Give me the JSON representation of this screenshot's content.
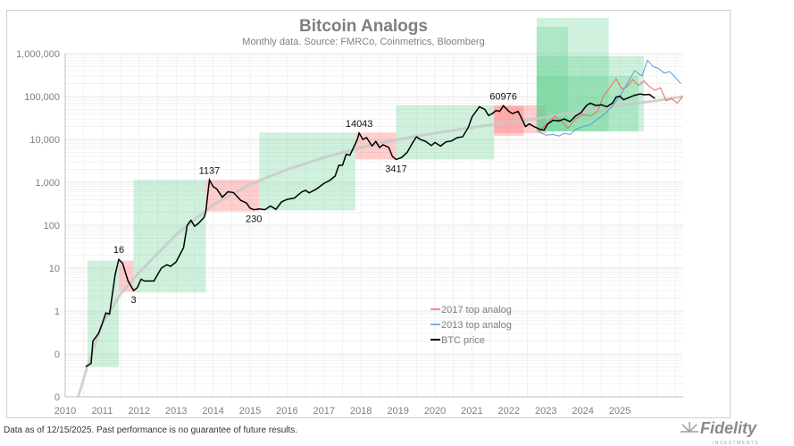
{
  "chart_data": {
    "type": "line",
    "title": "Bitcoin Analogs",
    "subtitle": "Monthly data.  Source: FMRCo, Coinmetrics, Bloomberg",
    "xlabel": "",
    "ylabel": "",
    "y_scale": "log",
    "ylim": [
      0.01,
      1000000
    ],
    "xlim": [
      2010,
      2026.7
    ],
    "x_tick_labels": [
      "2010",
      "2011",
      "2012",
      "2013",
      "2014",
      "2015",
      "2016",
      "2017",
      "2018",
      "2019",
      "2020",
      "2021",
      "2022",
      "2023",
      "2024",
      "2025"
    ],
    "y_ticks": [
      {
        "value": 1000000,
        "label": "1,000,000"
      },
      {
        "value": 100000,
        "label": "100,000"
      },
      {
        "value": 10000,
        "label": "10,000"
      },
      {
        "value": 1000,
        "label": "1,000"
      },
      {
        "value": 100,
        "label": "100"
      },
      {
        "value": 10,
        "label": "10"
      },
      {
        "value": 1,
        "label": "1"
      },
      {
        "value": 0.1,
        "label": "0"
      },
      {
        "value": 0.01,
        "label": "0"
      }
    ],
    "grid": true,
    "legend_position": "center-right",
    "series": [
      {
        "name": "2017 top analog",
        "color": "#f4675a",
        "points": [
          [
            2022.8,
            15000
          ],
          [
            2023.0,
            22000
          ],
          [
            2023.25,
            35000
          ],
          [
            2023.45,
            25000
          ],
          [
            2023.6,
            18000
          ],
          [
            2023.8,
            30000
          ],
          [
            2024.0,
            38000
          ],
          [
            2024.2,
            35000
          ],
          [
            2024.4,
            45000
          ],
          [
            2024.55,
            100000
          ],
          [
            2024.7,
            150000
          ],
          [
            2024.9,
            260000
          ],
          [
            2025.05,
            150000
          ],
          [
            2025.2,
            170000
          ],
          [
            2025.35,
            250000
          ],
          [
            2025.5,
            180000
          ],
          [
            2025.65,
            230000
          ],
          [
            2025.8,
            170000
          ],
          [
            2025.95,
            140000
          ],
          [
            2026.1,
            160000
          ],
          [
            2026.25,
            80000
          ],
          [
            2026.4,
            90000
          ],
          [
            2026.55,
            70000
          ],
          [
            2026.7,
            100000
          ]
        ]
      },
      {
        "name": "2013 top analog",
        "color": "#5b9bd5",
        "points": [
          [
            2022.8,
            15000
          ],
          [
            2023.0,
            12500
          ],
          [
            2023.2,
            13000
          ],
          [
            2023.35,
            12000
          ],
          [
            2023.5,
            14000
          ],
          [
            2023.65,
            13000
          ],
          [
            2023.8,
            17000
          ],
          [
            2024.0,
            20000
          ],
          [
            2024.2,
            22000
          ],
          [
            2024.4,
            30000
          ],
          [
            2024.6,
            40000
          ],
          [
            2024.8,
            60000
          ],
          [
            2025.0,
            100000
          ],
          [
            2025.2,
            200000
          ],
          [
            2025.4,
            400000
          ],
          [
            2025.6,
            300000
          ],
          [
            2025.75,
            700000
          ],
          [
            2025.9,
            500000
          ],
          [
            2026.05,
            450000
          ],
          [
            2026.2,
            350000
          ],
          [
            2026.35,
            380000
          ],
          [
            2026.5,
            280000
          ],
          [
            2026.65,
            200000
          ]
        ]
      },
      {
        "name": "BTC price",
        "color": "#000000",
        "points": [
          [
            2010.55,
            0.05
          ],
          [
            2010.7,
            0.06
          ],
          [
            2010.75,
            0.2
          ],
          [
            2010.9,
            0.3
          ],
          [
            2011.0,
            0.5
          ],
          [
            2011.1,
            0.9
          ],
          [
            2011.2,
            0.85
          ],
          [
            2011.35,
            7
          ],
          [
            2011.45,
            16
          ],
          [
            2011.55,
            13
          ],
          [
            2011.7,
            5
          ],
          [
            2011.85,
            3
          ],
          [
            2011.95,
            3.5
          ],
          [
            2012.05,
            5.5
          ],
          [
            2012.15,
            5
          ],
          [
            2012.4,
            5
          ],
          [
            2012.6,
            10
          ],
          [
            2012.75,
            12
          ],
          [
            2012.85,
            11
          ],
          [
            2013.0,
            14
          ],
          [
            2013.2,
            30
          ],
          [
            2013.3,
            100
          ],
          [
            2013.4,
            130
          ],
          [
            2013.5,
            95
          ],
          [
            2013.6,
            110
          ],
          [
            2013.75,
            150
          ],
          [
            2013.8,
            200
          ],
          [
            2013.9,
            1137
          ],
          [
            2014.0,
            800
          ],
          [
            2014.1,
            700
          ],
          [
            2014.25,
            450
          ],
          [
            2014.4,
            600
          ],
          [
            2014.55,
            580
          ],
          [
            2014.75,
            380
          ],
          [
            2014.9,
            330
          ],
          [
            2015.0,
            250
          ],
          [
            2015.1,
            230
          ],
          [
            2015.25,
            240
          ],
          [
            2015.4,
            230
          ],
          [
            2015.55,
            280
          ],
          [
            2015.7,
            235
          ],
          [
            2015.85,
            350
          ],
          [
            2016.0,
            400
          ],
          [
            2016.2,
            430
          ],
          [
            2016.4,
            600
          ],
          [
            2016.5,
            650
          ],
          [
            2016.6,
            570
          ],
          [
            2016.8,
            700
          ],
          [
            2017.0,
            950
          ],
          [
            2017.15,
            1100
          ],
          [
            2017.3,
            1400
          ],
          [
            2017.4,
            2500
          ],
          [
            2017.5,
            2500
          ],
          [
            2017.6,
            4500
          ],
          [
            2017.7,
            4300
          ],
          [
            2017.8,
            6500
          ],
          [
            2017.9,
            10000
          ],
          [
            2017.95,
            14043
          ],
          [
            2018.05,
            10000
          ],
          [
            2018.15,
            11000
          ],
          [
            2018.3,
            7000
          ],
          [
            2018.4,
            9000
          ],
          [
            2018.5,
            6500
          ],
          [
            2018.6,
            7500
          ],
          [
            2018.75,
            6500
          ],
          [
            2018.85,
            4000
          ],
          [
            2018.95,
            3417
          ],
          [
            2019.1,
            3800
          ],
          [
            2019.25,
            5000
          ],
          [
            2019.4,
            8500
          ],
          [
            2019.5,
            11500
          ],
          [
            2019.6,
            10000
          ],
          [
            2019.75,
            9000
          ],
          [
            2019.9,
            7200
          ],
          [
            2020.0,
            8500
          ],
          [
            2020.15,
            7000
          ],
          [
            2020.3,
            8800
          ],
          [
            2020.45,
            9200
          ],
          [
            2020.6,
            11000
          ],
          [
            2020.75,
            11500
          ],
          [
            2020.9,
            19000
          ],
          [
            2021.0,
            33000
          ],
          [
            2021.2,
            58000
          ],
          [
            2021.35,
            50000
          ],
          [
            2021.45,
            36000
          ],
          [
            2021.55,
            40000
          ],
          [
            2021.65,
            47000
          ],
          [
            2021.75,
            45000
          ],
          [
            2021.85,
            60976
          ],
          [
            2022.0,
            45000
          ],
          [
            2022.1,
            40000
          ],
          [
            2022.25,
            45000
          ],
          [
            2022.35,
            30000
          ],
          [
            2022.45,
            20000
          ],
          [
            2022.55,
            23000
          ],
          [
            2022.7,
            19500
          ],
          [
            2022.85,
            17000
          ],
          [
            2022.95,
            16500
          ],
          [
            2023.05,
            23000
          ],
          [
            2023.2,
            28000
          ],
          [
            2023.35,
            27000
          ],
          [
            2023.5,
            30000
          ],
          [
            2023.65,
            26000
          ],
          [
            2023.8,
            35000
          ],
          [
            2023.95,
            42000
          ],
          [
            2024.1,
            62000
          ],
          [
            2024.2,
            70000
          ],
          [
            2024.35,
            62000
          ],
          [
            2024.5,
            64000
          ],
          [
            2024.65,
            58000
          ],
          [
            2024.8,
            70000
          ],
          [
            2024.9,
            97000
          ],
          [
            2025.0,
            102000
          ],
          [
            2025.1,
            84000
          ],
          [
            2025.25,
            95000
          ],
          [
            2025.4,
            107000
          ],
          [
            2025.55,
            115000
          ],
          [
            2025.65,
            110000
          ],
          [
            2025.8,
            112000
          ],
          [
            2025.95,
            90000
          ]
        ]
      }
    ],
    "trend": {
      "color": "#c8c8c8",
      "points": [
        [
          2010.35,
          0.01
        ],
        [
          2010.6,
          0.05
        ],
        [
          2011.0,
          0.5
        ],
        [
          2011.5,
          2.5
        ],
        [
          2012.0,
          8
        ],
        [
          2013.0,
          60
        ],
        [
          2014.0,
          300
        ],
        [
          2015.0,
          900
        ],
        [
          2016.0,
          2000
        ],
        [
          2017.0,
          3800
        ],
        [
          2018.0,
          6500
        ],
        [
          2019.0,
          10000
        ],
        [
          2020.0,
          14000
        ],
        [
          2021.0,
          19000
        ],
        [
          2022.0,
          25000
        ],
        [
          2023.0,
          33000
        ],
        [
          2024.0,
          45000
        ],
        [
          2025.0,
          62000
        ],
        [
          2026.0,
          80000
        ],
        [
          2026.7,
          100000
        ]
      ]
    },
    "boxes": [
      {
        "kind": "bull",
        "x": [
          2010.6,
          2011.45
        ],
        "y": [
          0.05,
          15
        ]
      },
      {
        "kind": "bear",
        "x": [
          2011.45,
          2011.85
        ],
        "y": [
          2.8,
          15
        ]
      },
      {
        "kind": "bull",
        "x": [
          2011.85,
          2013.8
        ],
        "y": [
          2.7,
          1150
        ]
      },
      {
        "kind": "bear",
        "x": [
          2013.8,
          2015.25
        ],
        "y": [
          210,
          1150
        ]
      },
      {
        "kind": "bull",
        "x": [
          2015.25,
          2017.85
        ],
        "y": [
          220,
          14500
        ]
      },
      {
        "kind": "bear",
        "x": [
          2017.85,
          2018.95
        ],
        "y": [
          3417,
          14500
        ]
      },
      {
        "kind": "bull",
        "x": [
          2018.95,
          2021.6
        ],
        "y": [
          3417,
          62000
        ]
      },
      {
        "kind": "bear",
        "x": [
          2021.6,
          2023.0
        ],
        "y": [
          14000,
          62000
        ]
      },
      {
        "kind": "bear",
        "x": [
          2021.6,
          2022.4
        ],
        "y": [
          12000,
          60000
        ]
      },
      {
        "kind": "bull",
        "x": [
          2022.75,
          2024.7
        ],
        "y": [
          15400,
          6800000
        ]
      },
      {
        "kind": "bull",
        "x": [
          2022.75,
          2023.6
        ],
        "y": [
          15400,
          4200000
        ]
      },
      {
        "kind": "bull",
        "x": [
          2022.75,
          2025.65
        ],
        "y": [
          15400,
          870000
        ]
      },
      {
        "kind": "bull",
        "x": [
          2022.75,
          2025.5
        ],
        "y": [
          15400,
          300000
        ]
      }
    ],
    "box_colors": {
      "bull": "#5fcf8f",
      "bear": "#ff5c5c"
    },
    "annotations": [
      {
        "text": "16",
        "x": 2011.45,
        "y": 16,
        "pos": "above"
      },
      {
        "text": "3",
        "x": 2011.85,
        "y": 3,
        "pos": "below"
      },
      {
        "text": "1137",
        "x": 2013.9,
        "y": 1137,
        "pos": "above"
      },
      {
        "text": "230",
        "x": 2015.1,
        "y": 230,
        "pos": "below"
      },
      {
        "text": "14043",
        "x": 2017.95,
        "y": 14043,
        "pos": "above"
      },
      {
        "text": "3417",
        "x": 2018.95,
        "y": 3417,
        "pos": "below"
      },
      {
        "text": "60976",
        "x": 2021.85,
        "y": 60976,
        "pos": "above"
      }
    ]
  },
  "footer": "Data as of 12/15/2025. Past performance is no guarantee of future results.",
  "logo": {
    "text": "Fidelity",
    "subtext": "INVESTMENTS"
  }
}
